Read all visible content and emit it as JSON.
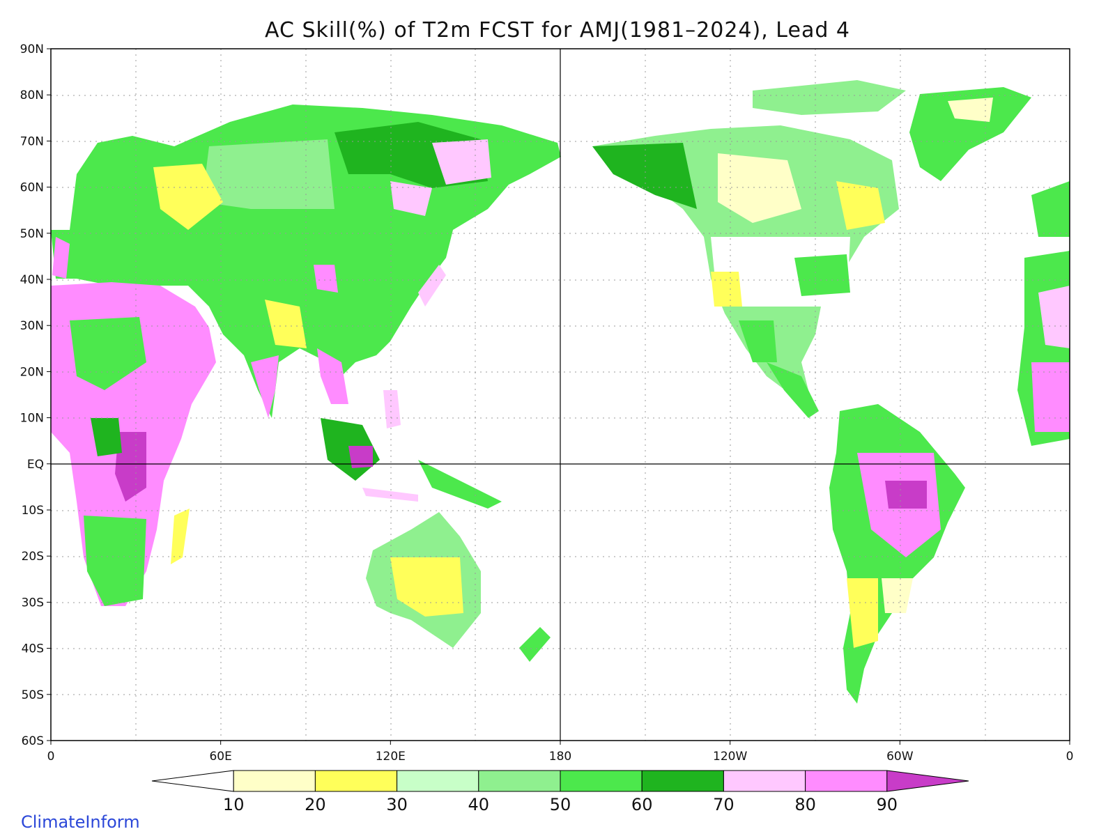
{
  "title": "AC Skill(%) of T2m FCST for AMJ(1981–2024), Lead 4",
  "credit": "ClimateInform",
  "lat_labels": [
    "90N",
    "80N",
    "70N",
    "60N",
    "50N",
    "40N",
    "30N",
    "20N",
    "10N",
    "EQ",
    "10S",
    "20S",
    "30S",
    "40S",
    "50S",
    "60S"
  ],
  "lon_labels": [
    "0",
    "60E",
    "120E",
    "180",
    "120W",
    "60W",
    "0"
  ],
  "colorbar": {
    "labels": [
      "10",
      "20",
      "30",
      "40",
      "50",
      "60",
      "70",
      "80",
      "90"
    ],
    "colors": [
      "#ffffff",
      "#ffffc8",
      "#ffff5a",
      "#c8ffc8",
      "#8ff08f",
      "#4ce84c",
      "#1fb41f",
      "#ffc8ff",
      "#ff8cff",
      "#c83cc8"
    ]
  },
  "colors": {
    "coast": "#8c8c8c",
    "grid": "#999999",
    "frame": "#000000"
  }
}
